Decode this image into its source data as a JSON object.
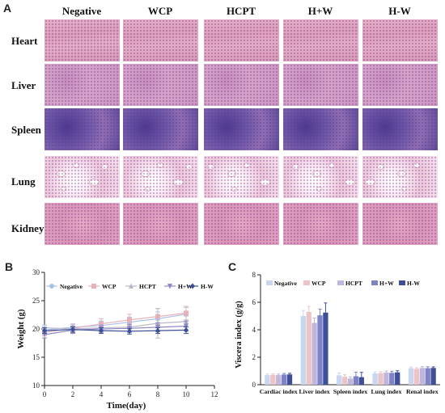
{
  "panel_a": {
    "letter": "A",
    "columns": [
      "Negative",
      "WCP",
      "HCPT",
      "H+W",
      "H-W"
    ],
    "rows": [
      "Heart",
      "Liver",
      "Spleen",
      "Lung",
      "Kidney"
    ]
  },
  "chart_data": [
    {
      "panel": "B",
      "type": "line",
      "xlabel": "Time(day)",
      "ylabel": "Weight (g)",
      "xlim": [
        0,
        12
      ],
      "ylim": [
        10,
        30
      ],
      "xticks": [
        0,
        2,
        4,
        6,
        8,
        10,
        12
      ],
      "yticks": [
        10,
        15,
        20,
        25,
        30
      ],
      "legend_position": "top",
      "x": [
        0,
        2,
        4,
        6,
        8,
        10
      ],
      "series": [
        {
          "name": "Negative",
          "color": "#a9c4e8",
          "values": [
            19.8,
            20.3,
            20.6,
            21.2,
            21.8,
            22.6
          ],
          "errors": [
            0.6,
            0.6,
            0.8,
            0.9,
            1.2,
            1.2
          ]
        },
        {
          "name": "WCP",
          "color": "#e8b0b8",
          "values": [
            19.4,
            20.1,
            20.9,
            21.6,
            22.2,
            22.8
          ],
          "errors": [
            0.6,
            0.7,
            0.9,
            1.0,
            1.4,
            1.2
          ]
        },
        {
          "name": "HCPT",
          "color": "#b8b8c8",
          "values": [
            20.2,
            20.0,
            20.2,
            20.3,
            21.0,
            21.3
          ],
          "errors": [
            0.5,
            0.5,
            0.6,
            0.7,
            2.6,
            1.0
          ]
        },
        {
          "name": "H+W",
          "color": "#8f88c8",
          "values": [
            19.0,
            19.8,
            20.0,
            20.1,
            20.3,
            20.5
          ],
          "errors": [
            0.6,
            0.6,
            0.6,
            0.7,
            0.8,
            0.9
          ]
        },
        {
          "name": "H-W",
          "color": "#3a4f96",
          "values": [
            19.7,
            19.9,
            19.7,
            19.6,
            19.7,
            19.8
          ],
          "errors": [
            0.5,
            0.5,
            0.5,
            0.5,
            0.5,
            0.6
          ]
        }
      ]
    },
    {
      "panel": "C",
      "type": "bar",
      "ylabel": "Viscera index (g/g)",
      "ylim": [
        0,
        8
      ],
      "yticks": [
        0,
        2,
        4,
        6,
        8
      ],
      "legend_position": "top",
      "categories": [
        "Cardiac index",
        "Liver index",
        "Spleen index",
        "Lung index",
        "Renal index"
      ],
      "series": [
        {
          "name": "Negative",
          "color": "#c8d6ef",
          "values": [
            0.7,
            5.0,
            0.68,
            0.82,
            1.2
          ],
          "errors": [
            0.08,
            0.4,
            0.18,
            0.1,
            0.08
          ]
        },
        {
          "name": "WCP",
          "color": "#ecc4c8",
          "values": [
            0.72,
            5.3,
            0.58,
            0.84,
            1.15
          ],
          "errors": [
            0.08,
            0.4,
            0.15,
            0.1,
            0.08
          ]
        },
        {
          "name": "HCPT",
          "color": "#c0b6dc",
          "values": [
            0.7,
            4.5,
            0.45,
            0.88,
            1.22
          ],
          "errors": [
            0.08,
            0.35,
            0.12,
            0.12,
            0.1
          ]
        },
        {
          "name": "H+W",
          "color": "#7d83c6",
          "values": [
            0.74,
            5.05,
            0.62,
            0.86,
            1.2
          ],
          "errors": [
            0.08,
            0.45,
            0.3,
            0.12,
            0.1
          ]
        },
        {
          "name": "H-W",
          "color": "#3f4f97",
          "values": [
            0.75,
            5.25,
            0.55,
            0.9,
            1.22
          ],
          "errors": [
            0.08,
            0.7,
            0.35,
            0.12,
            0.08
          ]
        }
      ]
    }
  ]
}
